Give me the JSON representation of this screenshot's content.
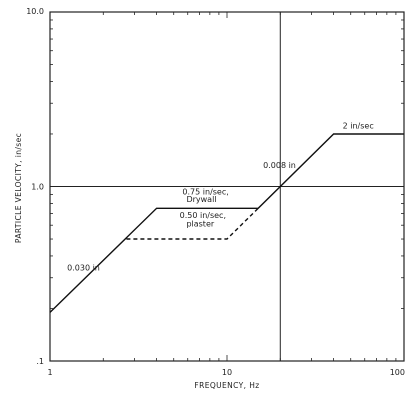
{
  "chart_data": {
    "type": "line",
    "xscale": "log",
    "yscale": "log",
    "xlim": [
      1,
      100
    ],
    "ylim": [
      0.1,
      10
    ],
    "xlabel": "FREQUENCY, Hz",
    "ylabel": "PARTICLE VELOCITY, in/sec",
    "x_tick_labels": [
      {
        "value": 1,
        "label": "1"
      },
      {
        "value": 10,
        "label": "10"
      },
      {
        "value": 100,
        "label": "100"
      }
    ],
    "y_tick_labels": [
      {
        "value": 10,
        "label": "10.0"
      },
      {
        "value": 1,
        "label": "1.0"
      },
      {
        "value": 0.1,
        "label": ".1"
      }
    ],
    "grid_lines": {
      "x": [
        20
      ],
      "y": [
        1
      ]
    },
    "series": [
      {
        "style": "solid",
        "points": [
          [
            1,
            0.19
          ],
          [
            4,
            0.75
          ],
          [
            15,
            0.75
          ],
          [
            40,
            2
          ],
          [
            100,
            2
          ]
        ]
      },
      {
        "style": "dashed",
        "points": [
          [
            2.7,
            0.5
          ],
          [
            10,
            0.5
          ],
          [
            15,
            0.75
          ]
        ]
      }
    ],
    "annotations": [
      {
        "text": "0.030 in",
        "x": 1.25,
        "y": 0.33
      },
      {
        "text": "0.75 in/sec,",
        "x": 5.6,
        "y": 0.9
      },
      {
        "text": "Drywall",
        "x": 5.9,
        "y": 0.815
      },
      {
        "text": "0.50 in/sec,",
        "x": 5.4,
        "y": 0.66
      },
      {
        "text": "plaster",
        "x": 5.9,
        "y": 0.59
      },
      {
        "text": "0.008 in",
        "x": 16,
        "y": 1.28
      },
      {
        "text": "2 in/sec",
        "x": 45,
        "y": 2.15
      }
    ]
  }
}
